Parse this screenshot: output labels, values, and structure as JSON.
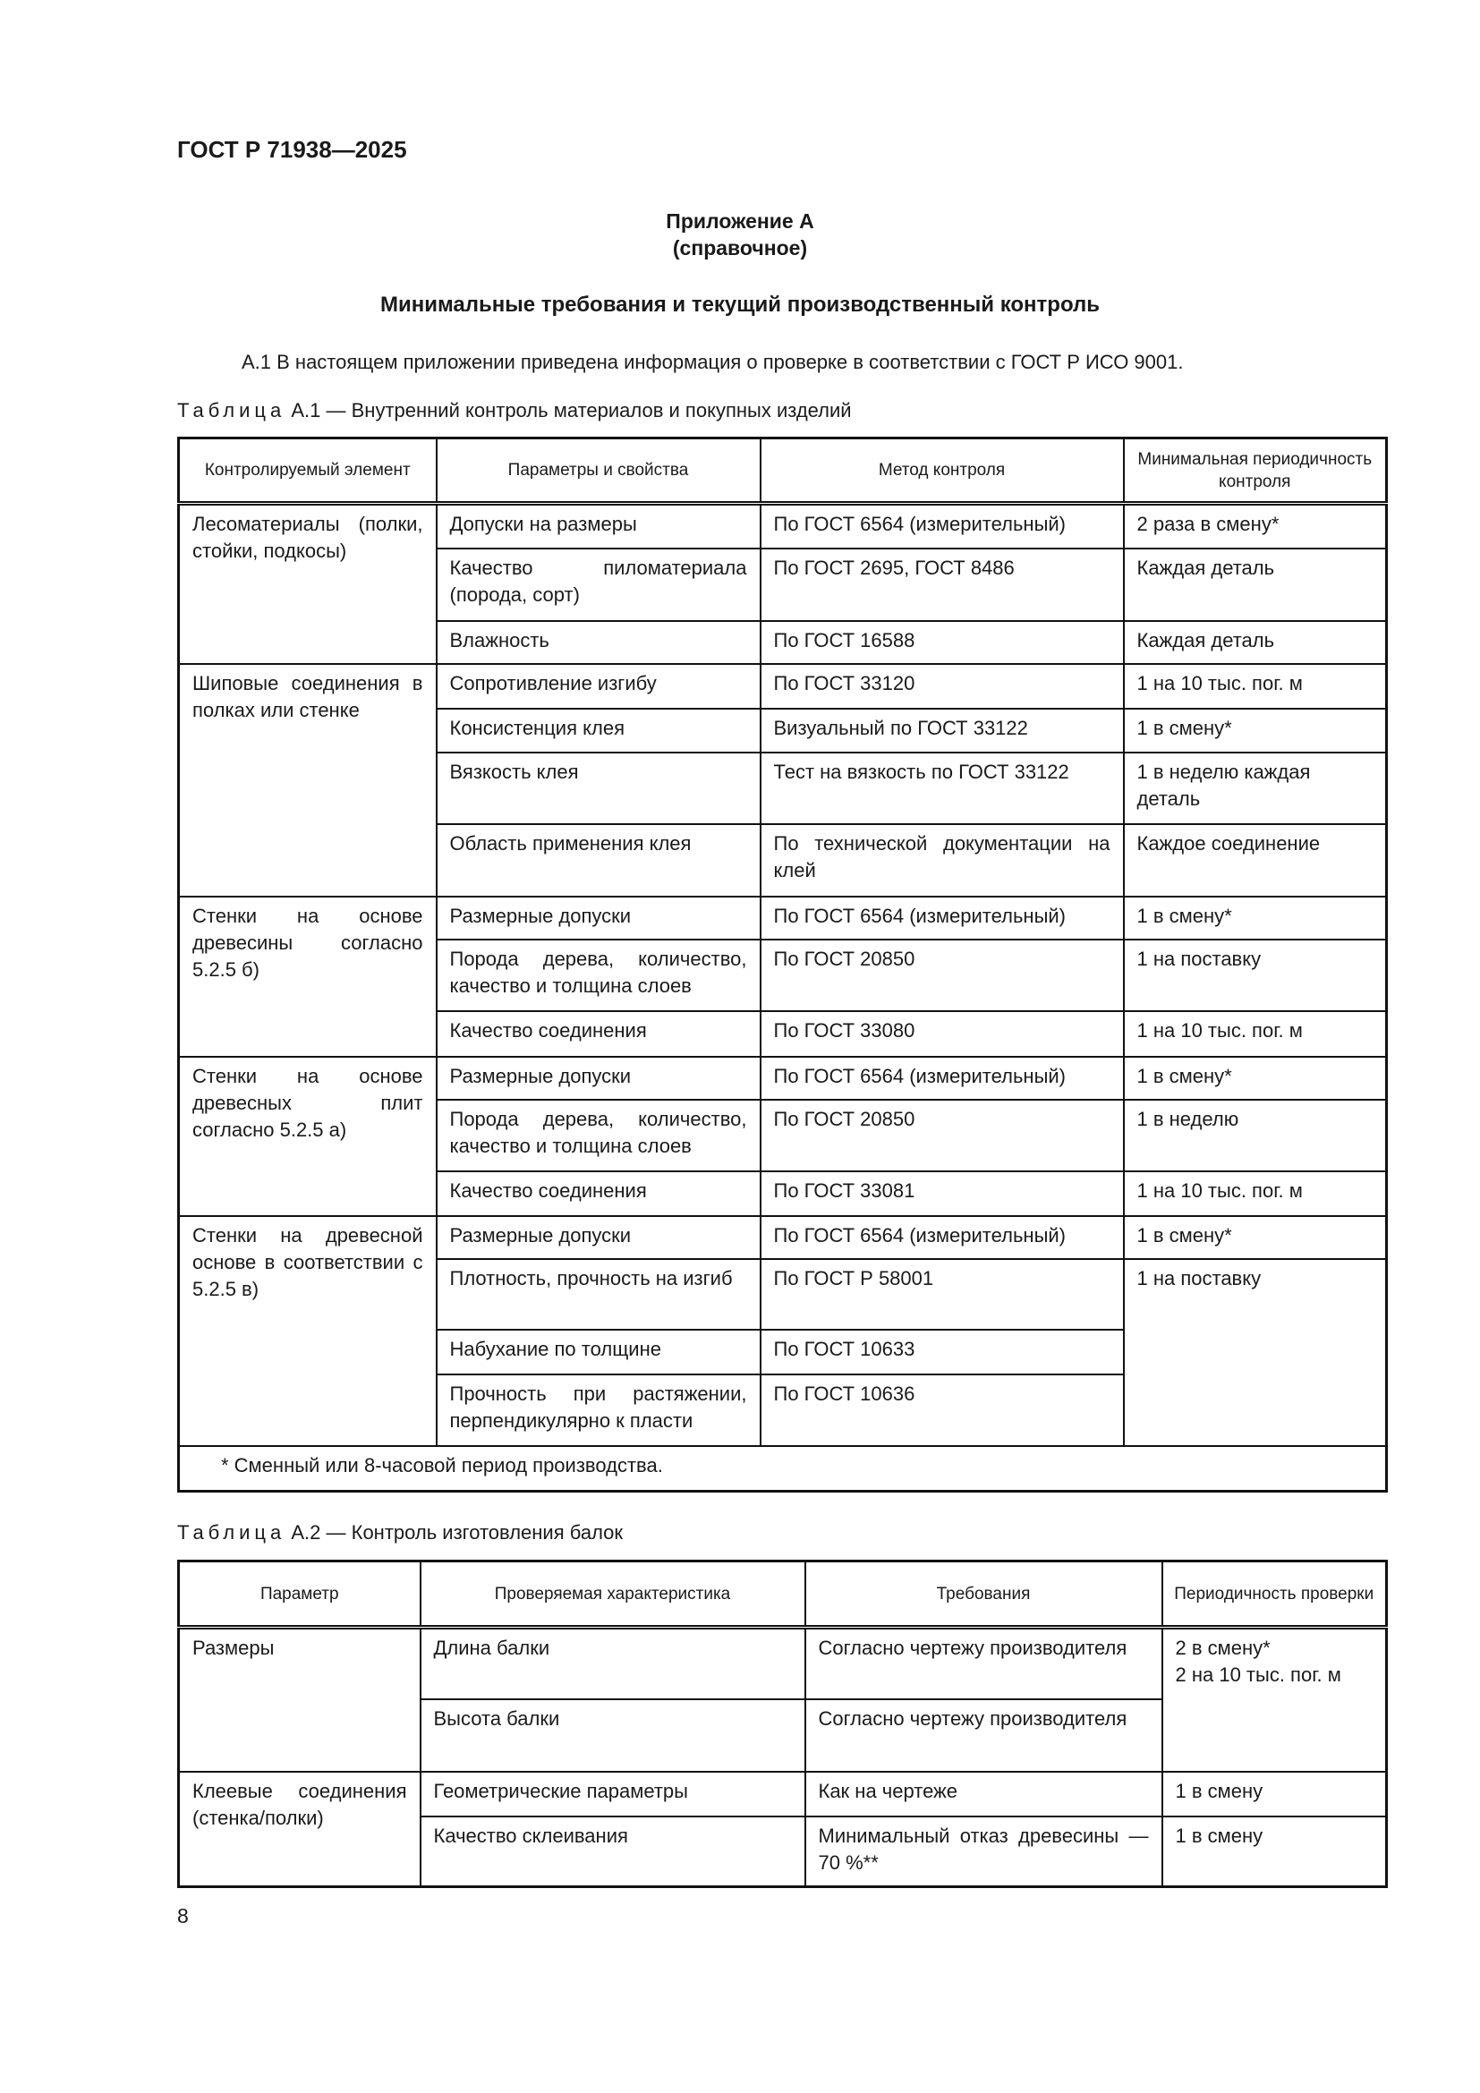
{
  "header": {
    "doc_title": "ГОСТ Р 71938—2025"
  },
  "annex": {
    "title": "Приложение А",
    "type": "(справочное)",
    "heading": "Минимальные требования и текущий производственный контроль"
  },
  "paragraph": "А.1  В настоящем приложении приведена информация о проверке в соответствии с ГОСТ Р ИСО 9001.",
  "table1": {
    "caption_prefix": "Таблица",
    "caption_rest": " А.1 — Внутренний контроль материалов и покупных изделий",
    "headers": [
      "Контролируемый элемент",
      "Параметры и свойства",
      "Метод контроля",
      "Минимальная периодичность контроля"
    ],
    "groups": [
      {
        "element": "Лесоматериалы (полки, стойки, подкосы)",
        "rows": [
          {
            "param": "Допуски на размеры",
            "method": "По ГОСТ 6564 (измерительный)",
            "period": "2 раза в смену*"
          },
          {
            "param": "Качество пиломатериала (порода, сорт)",
            "method": "По ГОСТ 2695, ГОСТ 8486",
            "period": "Каждая деталь"
          },
          {
            "param": "Влажность",
            "method": "По ГОСТ 16588",
            "period": "Каждая деталь"
          }
        ]
      },
      {
        "element": "Шиповые соединения в полках или стенке",
        "rows": [
          {
            "param": "Сопротивление изгибу",
            "method": "По ГОСТ 33120",
            "period": "1 на 10 тыс. пог. м"
          },
          {
            "param": "Консистенция клея",
            "method": "Визуальный по ГОСТ 33122",
            "period": "1 в смену*"
          },
          {
            "param": "Вязкость клея",
            "method": "Тест на вязкость по ГОСТ 33122",
            "period": "1 в неделю каждая деталь"
          },
          {
            "param": "Область применения клея",
            "method": "По технической документации на клей",
            "period": "Каждое соединение"
          }
        ]
      },
      {
        "element": "Стенки на основе древесины согласно 5.2.5 б)",
        "rows": [
          {
            "param": "Размерные допуски",
            "method": "По ГОСТ 6564 (измерительный)",
            "period": "1 в смену*"
          },
          {
            "param": "Порода дерева, количество, качество и толщина слоев",
            "method": "По ГОСТ 20850",
            "period": "1 на поставку"
          },
          {
            "param": "Качество соединения",
            "method": "По ГОСТ 33080",
            "period": "1 на 10 тыс. пог. м"
          }
        ]
      },
      {
        "element": "Стенки на основе древесных плит согласно 5.2.5 а)",
        "rows": [
          {
            "param": "Размерные допуски",
            "method": "По ГОСТ 6564 (измерительный)",
            "period": "1 в смену*"
          },
          {
            "param": "Порода дерева, количество, качество и толщина слоев",
            "method": "По ГОСТ 20850",
            "period": "1 в неделю"
          },
          {
            "param": "Качество соединения",
            "method": "По ГОСТ 33081",
            "period": "1 на 10 тыс. пог. м"
          }
        ]
      },
      {
        "element": "Стенки на древесной основе в соответствии с 5.2.5 в)",
        "rows": [
          {
            "param": "Размерные допуски",
            "method": "По ГОСТ 6564 (измерительный)",
            "period": "1 в смену*"
          },
          {
            "param": "Плотность, прочность на изгиб",
            "method": "По ГОСТ Р 58001",
            "period": "1 на поставку"
          },
          {
            "param": "Набухание по толщине",
            "method": "По ГОСТ 10633",
            "period": ""
          },
          {
            "param": "Прочность при растяжении, перпендикулярно к пласти",
            "method": "По ГОСТ 10636",
            "period": ""
          }
        ]
      }
    ],
    "footnote": "* Сменный или 8-часовой период производства."
  },
  "table2": {
    "caption_prefix": "Таблица",
    "caption_rest": " А.2 — Контроль изготовления балок",
    "headers": [
      "Параметр",
      "Проверяемая характеристика",
      "Требования",
      "Периодичность проверки"
    ],
    "groups": [
      {
        "element": "Размеры",
        "rows": [
          {
            "param": "Длина балки",
            "method": "Согласно чертежу производителя",
            "period": "2 в смену*\n2 на 10 тыс. пог. м"
          },
          {
            "param": "Высота балки",
            "method": "Согласно чертежу производителя",
            "period": ""
          }
        ]
      },
      {
        "element": "Клеевые соединения (стенка/полки)",
        "rows": [
          {
            "param": "Геометрические параметры",
            "method": "Как на чертеже",
            "period": "1 в смену"
          },
          {
            "param": "Качество склеивания",
            "method": "Минимальный отказ древесины — 70 %**",
            "period": "1 в смену"
          }
        ]
      }
    ]
  },
  "page_number": "8"
}
